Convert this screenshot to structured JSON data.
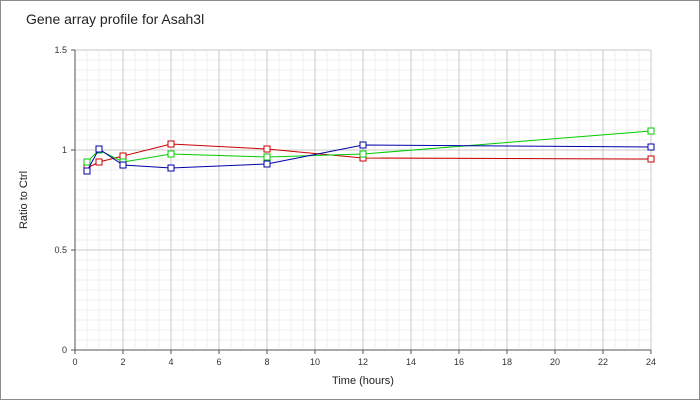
{
  "chart_data": {
    "type": "line",
    "title": "Gene array profile for Asah3l",
    "xlabel": "Time (hours)",
    "ylabel": "Ratio to Ctrl",
    "xlim": [
      0,
      24
    ],
    "ylim": [
      0,
      1.5
    ],
    "x_ticks": [
      0,
      2,
      4,
      6,
      8,
      10,
      12,
      14,
      16,
      18,
      20,
      22,
      24
    ],
    "x_tick_labels": [
      "0",
      "2",
      "4",
      "6",
      "8",
      "10",
      "12",
      "14",
      "16",
      "18",
      "20",
      "22",
      "24"
    ],
    "y_ticks": [
      0,
      0.5,
      1,
      1.5
    ],
    "y_tick_labels": [
      "0",
      "0.5",
      "1",
      "1.5"
    ],
    "grid": true,
    "legend": "none",
    "series": [
      {
        "color": "#cc0000",
        "x": [
          0.5,
          1,
          2,
          4,
          8,
          12,
          24
        ],
        "values": [
          0.91,
          0.94,
          0.97,
          1.03,
          1.005,
          0.96,
          0.955
        ]
      },
      {
        "color": "#00cc00",
        "x": [
          0.5,
          1,
          2,
          4,
          8,
          12,
          24
        ],
        "values": [
          0.94,
          1.0,
          0.94,
          0.98,
          0.965,
          0.98,
          1.095
        ]
      },
      {
        "color": "#0000aa",
        "x": [
          0.5,
          1,
          2,
          4,
          8,
          12,
          24
        ],
        "values": [
          0.895,
          1.005,
          0.925,
          0.91,
          0.93,
          1.025,
          1.015
        ]
      }
    ]
  }
}
